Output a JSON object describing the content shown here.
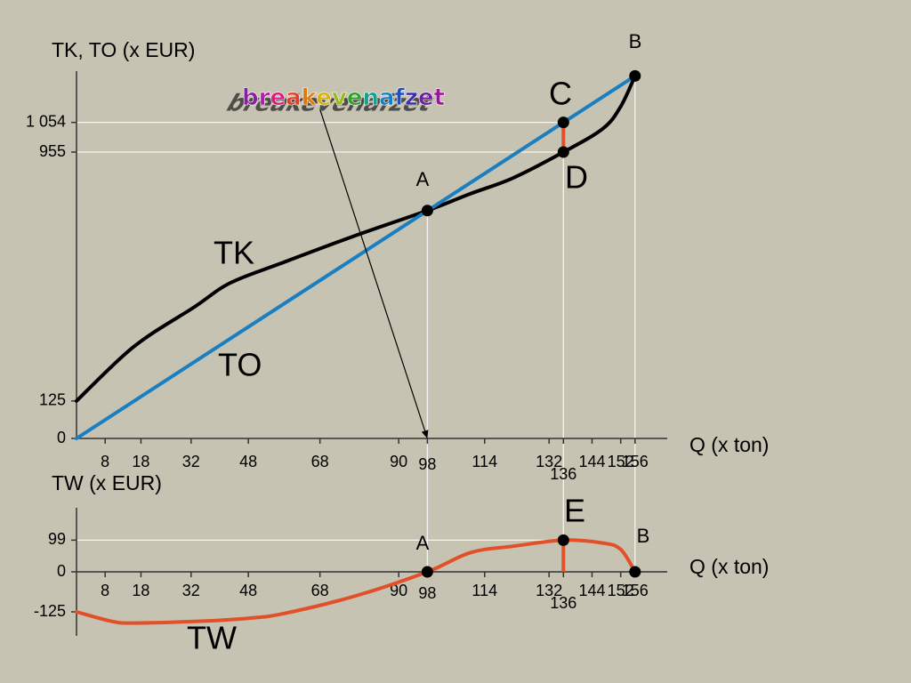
{
  "chart_data": [
    {
      "type": "line",
      "y_label": "TK, TO (x EUR)",
      "x_label": "Q (x ton)",
      "xlim": [
        0,
        165
      ],
      "xticks": [
        8,
        18,
        32,
        48,
        68,
        90,
        98,
        114,
        132,
        136,
        144,
        152,
        156
      ],
      "ylim": [
        0,
        1225
      ],
      "yticks": [
        0,
        125,
        955,
        {
          "value": 1054,
          "label": "1 054"
        }
      ],
      "series": [
        {
          "name": "TK",
          "color": "#000000",
          "x": [
            0,
            16,
            33,
            43,
            58,
            78,
            98,
            110,
            122,
            136,
            147,
            152,
            156
          ],
          "values": [
            125,
            306,
            439,
            519,
            588,
            677,
            760,
            816,
            869,
            955,
            1033,
            1107,
            1209
          ]
        },
        {
          "name": "TO",
          "color": "#1a7fc1",
          "x": [
            0,
            156
          ],
          "values": [
            0,
            1209
          ]
        }
      ],
      "points": [
        {
          "label": "A",
          "x": 98,
          "y": 760,
          "vline": true
        },
        {
          "label": "C",
          "x": 136,
          "y": 1054,
          "vline": true,
          "hline": true,
          "connect": "D"
        },
        {
          "label": "D",
          "x": 136,
          "y": 955,
          "hline": true
        },
        {
          "label": "B",
          "x": 156,
          "y": 1209,
          "vline": true
        }
      ],
      "annotation": {
        "text": "breakevenafzet",
        "x": 98,
        "y": 0
      }
    },
    {
      "type": "line",
      "y_label": "TW (x EUR)",
      "x_label": "Q (x ton)",
      "xlim": [
        0,
        165
      ],
      "xticks": [
        8,
        18,
        32,
        48,
        68,
        90,
        98,
        114,
        132,
        136,
        144,
        152,
        156
      ],
      "ylim": [
        -200,
        200
      ],
      "yticks": [
        -125,
        0,
        99
      ],
      "series": [
        {
          "name": "TW",
          "color": "#e2502a",
          "x": [
            0,
            10,
            16,
            33,
            48,
            58,
            78,
            98,
            110,
            122,
            136,
            147,
            152,
            156
          ],
          "values": [
            -125,
            -155,
            -160,
            -155,
            -145,
            -130,
            -75,
            0,
            60,
            80,
            99,
            90,
            70,
            0
          ]
        }
      ],
      "points": [
        {
          "label": "A",
          "x": 98,
          "y": 0
        },
        {
          "label": "E",
          "x": 136,
          "y": 99,
          "hline": true,
          "stem": true
        },
        {
          "label": "B",
          "x": 156,
          "y": 0
        }
      ]
    }
  ]
}
